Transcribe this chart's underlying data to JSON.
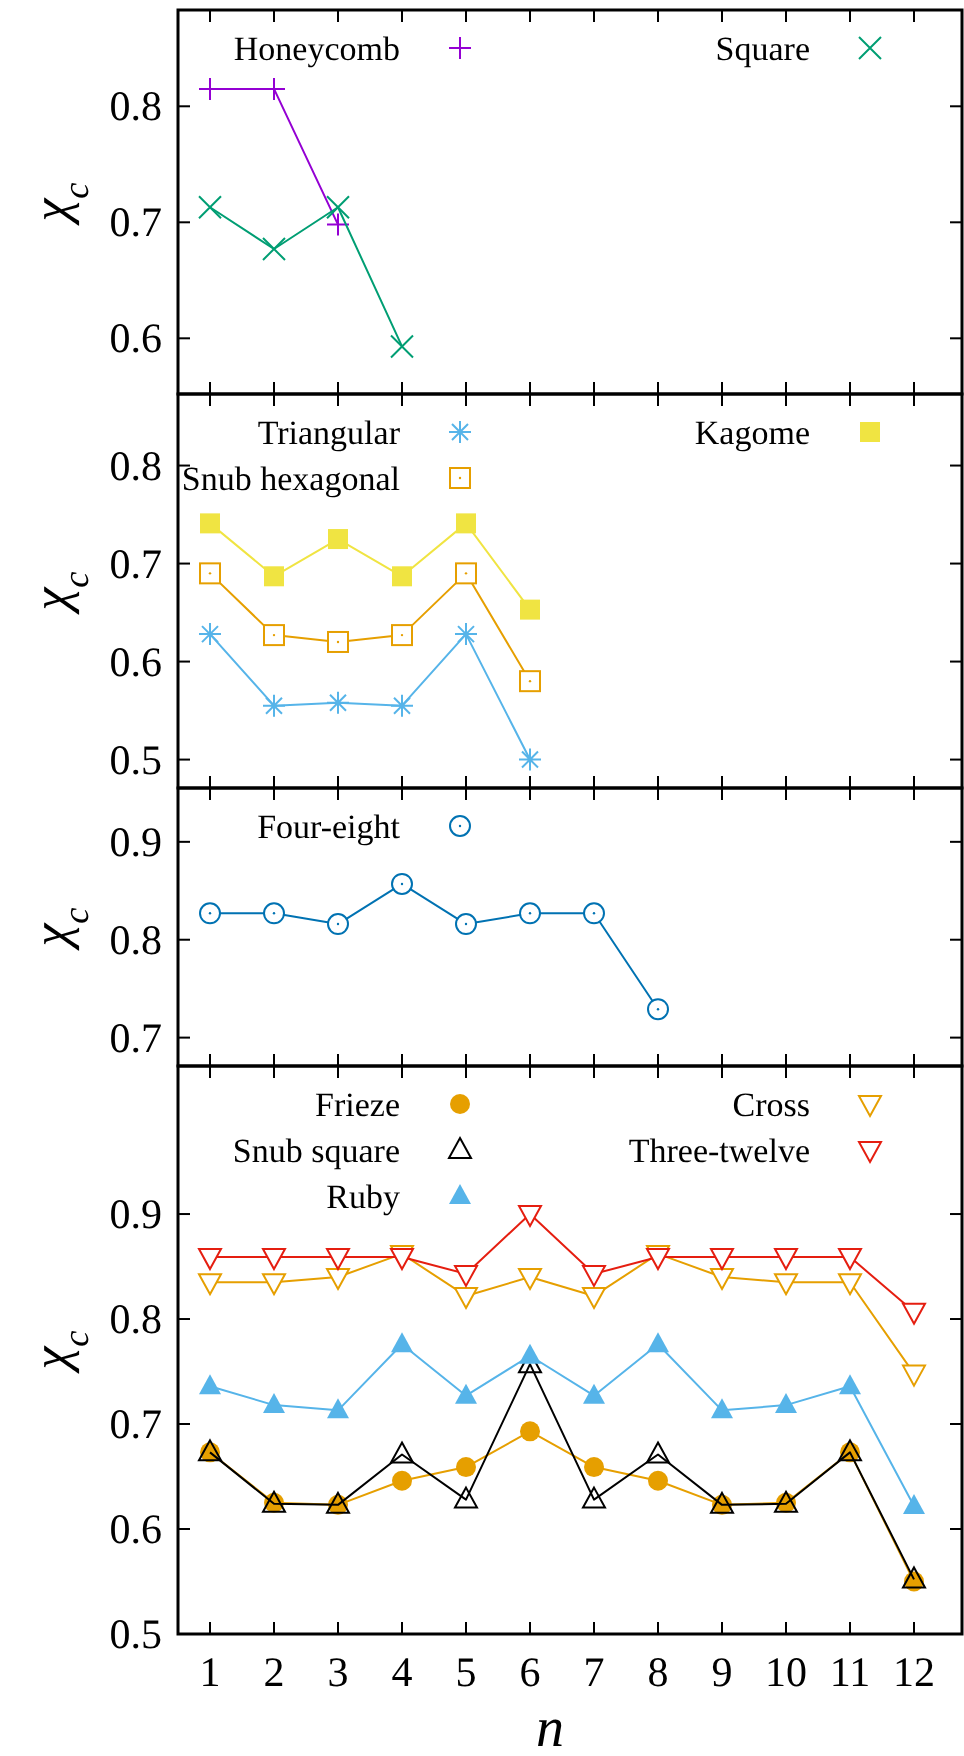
{
  "chart_data": [
    {
      "type": "line",
      "ylabel": "χ$_{c}$",
      "xlim": [
        0.5,
        12.75
      ],
      "xticks": [
        1,
        2,
        3,
        4,
        5,
        6,
        7,
        8,
        9,
        10,
        11,
        12
      ],
      "ylim": [
        0.552,
        0.883
      ],
      "yticks": [
        0.6,
        0.7,
        0.8
      ],
      "tick_labels": "y",
      "grid": false,
      "legend": "top",
      "series": [
        {
          "name": "Honeycomb",
          "color": "#9400d3",
          "marker": "plus",
          "x": [
            1,
            2,
            3
          ],
          "values": [
            0.815,
            0.815,
            0.698
          ]
        },
        {
          "name": "Square",
          "color": "#009e73",
          "marker": "x",
          "x": [
            1,
            2,
            3,
            4
          ],
          "values": [
            0.713,
            0.677,
            0.713,
            0.593
          ]
        }
      ]
    },
    {
      "type": "line",
      "ylabel": "χ$_{c}$",
      "xlim": [
        0.5,
        12.75
      ],
      "xticks": [
        1,
        2,
        3,
        4,
        5,
        6,
        7,
        8,
        9,
        10,
        11,
        12
      ],
      "ylim": [
        0.471,
        0.873
      ],
      "yticks": [
        0.5,
        0.6,
        0.7,
        0.8
      ],
      "tick_labels": "y",
      "grid": false,
      "legend": "top",
      "series": [
        {
          "name": "Triangular",
          "color": "#56b4e9",
          "marker": "cross",
          "x": [
            1,
            2,
            3,
            4,
            5,
            6
          ],
          "values": [
            0.628,
            0.555,
            0.558,
            0.555,
            0.628,
            0.5
          ]
        },
        {
          "name": "Snub hexagonal",
          "color": "#e69f00",
          "marker": "square-open",
          "x": [
            1,
            2,
            3,
            4,
            5,
            6
          ],
          "values": [
            0.69,
            0.627,
            0.62,
            0.627,
            0.69,
            0.58
          ]
        },
        {
          "name": "Kagome",
          "color": "#f0e442",
          "marker": "square",
          "x": [
            1,
            2,
            3,
            4,
            5,
            6
          ],
          "values": [
            0.741,
            0.687,
            0.725,
            0.687,
            0.741,
            0.653
          ]
        }
      ]
    },
    {
      "type": "line",
      "ylabel": "χ$_{c}$",
      "xlim": [
        0.5,
        12.75
      ],
      "xticks": [
        1,
        2,
        3,
        4,
        5,
        6,
        7,
        8,
        9,
        10,
        11,
        12
      ],
      "ylim": [
        0.671,
        0.955
      ],
      "yticks": [
        0.7,
        0.8,
        0.9
      ],
      "tick_labels": "y",
      "grid": false,
      "legend": "top",
      "series": [
        {
          "name": "Four-eight",
          "color": "#0072b2",
          "marker": "circle-open",
          "x": [
            1,
            2,
            3,
            4,
            5,
            6,
            7,
            8
          ],
          "values": [
            0.827,
            0.827,
            0.816,
            0.857,
            0.816,
            0.827,
            0.827,
            0.729
          ]
        }
      ]
    },
    {
      "type": "line",
      "xlabel": "n",
      "ylabel": "χ$_{c}$",
      "x": [
        1,
        2,
        3,
        4,
        5,
        6,
        7,
        8,
        9,
        10,
        11,
        12
      ],
      "xlim": [
        0.5,
        12.75
      ],
      "xticks": [
        1,
        2,
        3,
        4,
        5,
        6,
        7,
        8,
        9,
        10,
        11,
        12
      ],
      "ylim": [
        0.5,
        1.041
      ],
      "yticks": [
        0.5,
        0.6,
        0.7,
        0.8,
        0.9
      ],
      "grid": false,
      "legend": "top",
      "series": [
        {
          "name": "Frieze",
          "color": "#e69f00",
          "marker": "circle",
          "values": [
            0.673,
            0.625,
            0.623,
            0.646,
            0.659,
            0.693,
            0.659,
            0.646,
            0.623,
            0.625,
            0.673,
            0.55
          ]
        },
        {
          "name": "Snub square",
          "color": "#000000",
          "marker": "triangle-open",
          "values": [
            0.673,
            0.624,
            0.623,
            0.671,
            0.628,
            0.757,
            0.628,
            0.671,
            0.623,
            0.624,
            0.673,
            0.552
          ]
        },
        {
          "name": "Ruby",
          "color": "#56b4e9",
          "marker": "triangle",
          "values": [
            0.736,
            0.718,
            0.713,
            0.776,
            0.727,
            0.765,
            0.727,
            0.776,
            0.713,
            0.718,
            0.736,
            0.622
          ]
        },
        {
          "name": "Cross",
          "color": "#e69f00",
          "marker": "triangle-down-open",
          "values": [
            0.835,
            0.835,
            0.84,
            0.862,
            0.822,
            0.84,
            0.822,
            0.862,
            0.84,
            0.835,
            0.835,
            0.748
          ]
        },
        {
          "name": "Three-twelve",
          "color": "#e51e10",
          "marker": "triangle-down-open",
          "values": [
            0.859,
            0.859,
            0.859,
            0.859,
            0.843,
            0.9,
            0.843,
            0.859,
            0.859,
            0.859,
            0.859,
            0.807
          ]
        }
      ]
    }
  ]
}
